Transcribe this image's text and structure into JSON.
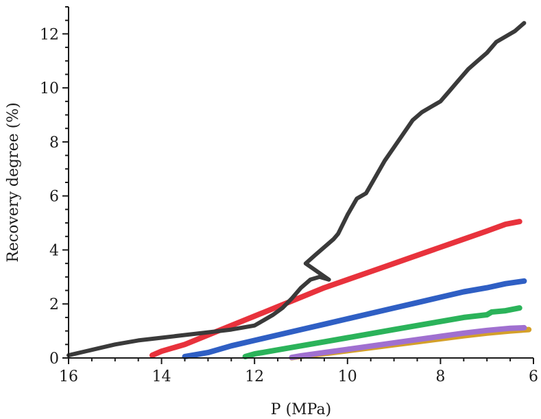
{
  "chart_data": {
    "type": "line",
    "title": "",
    "xlabel": "P (MPa)",
    "ylabel": "Recovery degree (%)",
    "xlim": [
      16,
      6
    ],
    "ylim": [
      0,
      13
    ],
    "x_ticks": [
      16,
      14,
      12,
      10,
      8,
      6
    ],
    "y_ticks": [
      0,
      2,
      4,
      6,
      8,
      10,
      12
    ],
    "x_tick_labels": [
      "16",
      "14",
      "12",
      "10",
      "8",
      "6"
    ],
    "y_tick_labels": [
      "0",
      "2",
      "4",
      "6",
      "8",
      "10",
      "12"
    ],
    "grid": false,
    "series": [
      {
        "name": "series-black",
        "color": "#3a3a3a",
        "x": [
          16.0,
          15.5,
          15.0,
          14.5,
          14.0,
          13.5,
          13.0,
          12.5,
          12.0,
          11.8,
          11.6,
          11.4,
          11.2,
          11.0,
          10.8,
          10.6,
          10.4,
          10.9,
          10.7,
          10.3,
          10.2,
          10.0,
          9.8,
          9.6,
          9.4,
          9.2,
          9.0,
          8.8,
          8.6,
          8.4,
          8.2,
          8.0,
          7.8,
          7.6,
          7.4,
          7.2,
          7.0,
          6.8,
          6.6,
          6.4,
          6.2
        ],
        "y": [
          0.1,
          0.3,
          0.5,
          0.65,
          0.75,
          0.85,
          0.95,
          1.05,
          1.2,
          1.4,
          1.6,
          1.85,
          2.2,
          2.6,
          2.9,
          3.0,
          2.9,
          3.5,
          3.8,
          4.4,
          4.6,
          5.3,
          5.9,
          6.1,
          6.7,
          7.3,
          7.8,
          8.3,
          8.8,
          9.1,
          9.3,
          9.5,
          9.9,
          10.3,
          10.7,
          11.0,
          11.3,
          11.7,
          11.9,
          12.1,
          12.4
        ]
      },
      {
        "name": "series-red",
        "color": "#e8323c",
        "x": [
          14.2,
          14.0,
          13.8,
          13.5,
          13.0,
          12.5,
          12.0,
          11.5,
          11.0,
          10.5,
          10.0,
          9.5,
          9.0,
          8.5,
          8.0,
          7.5,
          7.0,
          6.6,
          6.3
        ],
        "y": [
          0.1,
          0.25,
          0.35,
          0.5,
          0.85,
          1.2,
          1.55,
          1.9,
          2.25,
          2.6,
          2.9,
          3.2,
          3.5,
          3.8,
          4.1,
          4.4,
          4.7,
          4.95,
          5.05
        ]
      },
      {
        "name": "series-blue",
        "color": "#2f5fc4",
        "x": [
          13.5,
          13.0,
          12.5,
          12.0,
          11.5,
          11.0,
          10.5,
          10.0,
          9.5,
          9.0,
          8.5,
          8.0,
          7.5,
          7.0,
          6.6,
          6.2
        ],
        "y": [
          0.05,
          0.2,
          0.45,
          0.65,
          0.85,
          1.05,
          1.25,
          1.45,
          1.65,
          1.85,
          2.05,
          2.25,
          2.45,
          2.6,
          2.75,
          2.85
        ]
      },
      {
        "name": "series-green",
        "color": "#2bb35a",
        "x": [
          12.2,
          12.0,
          11.5,
          11.0,
          10.5,
          10.0,
          9.5,
          9.0,
          8.5,
          8.0,
          7.5,
          7.0,
          6.9,
          6.6,
          6.3
        ],
        "y": [
          0.05,
          0.15,
          0.3,
          0.45,
          0.6,
          0.75,
          0.9,
          1.05,
          1.2,
          1.35,
          1.5,
          1.6,
          1.7,
          1.75,
          1.85
        ]
      },
      {
        "name": "series-purple",
        "color": "#a070d0",
        "x": [
          11.2,
          11.0,
          10.5,
          10.0,
          9.5,
          9.0,
          8.5,
          8.0,
          7.5,
          7.0,
          6.5,
          6.2
        ],
        "y": [
          0.02,
          0.08,
          0.2,
          0.32,
          0.44,
          0.56,
          0.68,
          0.8,
          0.92,
          1.02,
          1.1,
          1.12
        ]
      },
      {
        "name": "series-orange",
        "color": "#d4a02a",
        "x": [
          11.2,
          11.0,
          10.5,
          10.0,
          9.5,
          9.0,
          8.5,
          8.0,
          7.5,
          7.0,
          6.5,
          6.1
        ],
        "y": [
          0.01,
          0.06,
          0.16,
          0.27,
          0.38,
          0.49,
          0.6,
          0.71,
          0.82,
          0.92,
          1.0,
          1.05
        ]
      }
    ]
  }
}
